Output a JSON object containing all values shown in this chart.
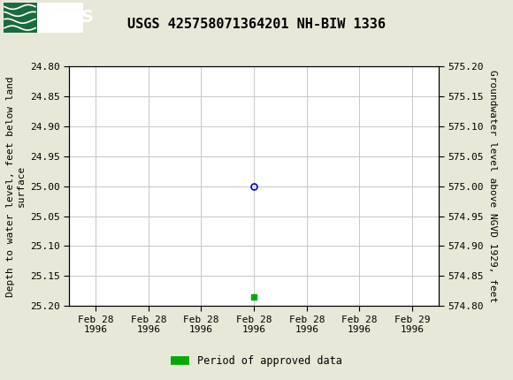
{
  "title": "USGS 425758071364201 NH-BIW 1336",
  "title_fontsize": 11,
  "background_color": "#e8e8d8",
  "plot_bg_color": "#ffffff",
  "header_color": "#1a6b3c",
  "left_ylabel_lines": [
    "Depth to water level, feet below land",
    "surface"
  ],
  "right_ylabel": "Groundwater level above NGVD 1929, feet",
  "ylabel_fontsize": 8,
  "ylim_left_top": 24.8,
  "ylim_left_bottom": 25.2,
  "ylim_right_top": 575.2,
  "ylim_right_bottom": 574.8,
  "yticks_left": [
    24.8,
    24.85,
    24.9,
    24.95,
    25.0,
    25.05,
    25.1,
    25.15,
    25.2
  ],
  "yticks_right": [
    575.2,
    575.15,
    575.1,
    575.05,
    575.0,
    574.95,
    574.9,
    574.85,
    574.8
  ],
  "ytick_labels_left": [
    "24.80",
    "24.85",
    "24.90",
    "24.95",
    "25.00",
    "25.05",
    "25.10",
    "25.15",
    "25.20"
  ],
  "ytick_labels_right": [
    "575.20",
    "575.15",
    "575.10",
    "575.05",
    "575.00",
    "574.95",
    "574.90",
    "574.85",
    "574.80"
  ],
  "xlim": [
    -0.5,
    6.5
  ],
  "xtick_labels": [
    "Feb 28\n1996",
    "Feb 28\n1996",
    "Feb 28\n1996",
    "Feb 28\n1996",
    "Feb 28\n1996",
    "Feb 28\n1996",
    "Feb 29\n1996"
  ],
  "xtick_positions": [
    0,
    1,
    2,
    3,
    4,
    5,
    6
  ],
  "grid_color": "#c8c8c8",
  "data_point_x": 3,
  "data_point_y": 25.0,
  "data_point_color": "#0000cc",
  "data_point_markersize": 5,
  "approved_x": 3,
  "approved_y": 25.185,
  "approved_color": "#00aa00",
  "approved_markersize": 4,
  "legend_label": "Period of approved data",
  "legend_color": "#00aa00",
  "tick_fontsize": 8,
  "font_family": "monospace"
}
